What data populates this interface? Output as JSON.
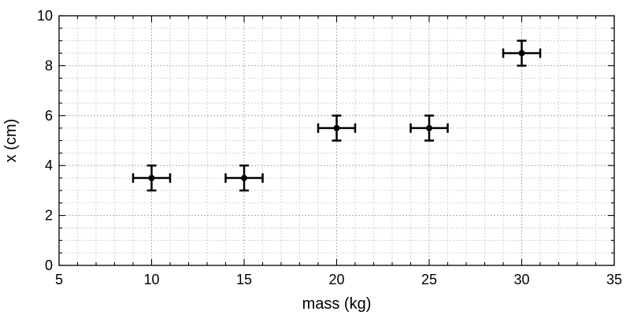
{
  "chart_data": {
    "type": "scatter",
    "title": "",
    "xlabel": "mass (kg)",
    "ylabel": "x (cm)",
    "xlim": [
      5,
      35
    ],
    "ylim": [
      0,
      10
    ],
    "xticks": [
      5,
      10,
      15,
      20,
      25,
      30,
      35
    ],
    "yticks": [
      0,
      2,
      4,
      6,
      8,
      10
    ],
    "x_minor_step": 1,
    "y_minor_step": 0.5,
    "grid": true,
    "marker_color": "#000000",
    "series": [
      {
        "x": [
          10,
          15,
          20,
          25,
          30
        ],
        "y": [
          3.5,
          3.5,
          5.5,
          5.5,
          8.5
        ],
        "xerr": [
          1,
          1,
          1,
          1,
          1
        ],
        "yerr": [
          0.5,
          0.5,
          0.5,
          0.5,
          0.5
        ]
      }
    ]
  }
}
